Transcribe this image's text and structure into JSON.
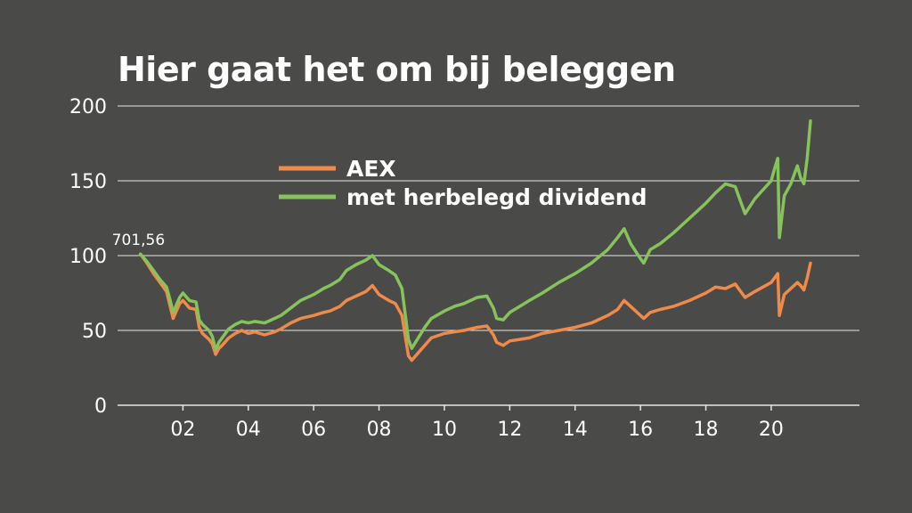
{
  "title": "Hier gaat het om bij beleggen",
  "colors": {
    "background": "#4a4a48",
    "text": "#ffffff",
    "grid": "#e6e6e6",
    "aex": "#f08a4b",
    "dividend": "#86c35a"
  },
  "chart_data": {
    "type": "line",
    "title": "Hier gaat het om bij beleggen",
    "xlabel": "",
    "ylabel": "",
    "xlim": [
      2000.0,
      2022.7
    ],
    "ylim": [
      0,
      200
    ],
    "yticks": [
      0,
      50,
      100,
      150,
      200
    ],
    "xticks": [
      {
        "value": 2002,
        "label": "02"
      },
      {
        "value": 2004,
        "label": "04"
      },
      {
        "value": 2006,
        "label": "06"
      },
      {
        "value": 2008,
        "label": "08"
      },
      {
        "value": 2010,
        "label": "10"
      },
      {
        "value": 2012,
        "label": "12"
      },
      {
        "value": 2014,
        "label": "14"
      },
      {
        "value": 2016,
        "label": "16"
      },
      {
        "value": 2018,
        "label": "18"
      },
      {
        "value": 2020,
        "label": "20"
      }
    ],
    "grid": "horizontal",
    "legend_position": "top-center",
    "annotations": [
      {
        "text": "701,56",
        "x": 2000.7,
        "y": 100
      }
    ],
    "series": [
      {
        "name": "AEX",
        "x": [
          2000.7,
          2000.9,
          2001.1,
          2001.3,
          2001.5,
          2001.6,
          2001.7,
          2001.9,
          2002.0,
          2002.2,
          2002.4,
          2002.5,
          2002.6,
          2002.8,
          2002.9,
          2003.0,
          2003.1,
          2003.2,
          2003.4,
          2003.6,
          2003.8,
          2004.0,
          2004.2,
          2004.5,
          2004.8,
          2005.0,
          2005.3,
          2005.6,
          2006.0,
          2006.3,
          2006.5,
          2006.8,
          2007.0,
          2007.3,
          2007.6,
          2007.8,
          2008.0,
          2008.3,
          2008.5,
          2008.7,
          2008.9,
          2009.0,
          2009.2,
          2009.4,
          2009.6,
          2010.0,
          2010.3,
          2010.6,
          2011.0,
          2011.3,
          2011.5,
          2011.6,
          2011.8,
          2012.0,
          2012.3,
          2012.6,
          2013.0,
          2013.5,
          2014.0,
          2014.5,
          2015.0,
          2015.3,
          2015.5,
          2015.7,
          2016.0,
          2016.1,
          2016.3,
          2016.6,
          2017.0,
          2017.5,
          2018.0,
          2018.3,
          2018.6,
          2018.9,
          2019.0,
          2019.2,
          2019.5,
          2020.0,
          2020.1,
          2020.2,
          2020.25,
          2020.4,
          2020.6,
          2020.8,
          2020.9,
          2021.0,
          2021.1,
          2021.2
        ],
        "values": [
          101,
          95,
          88,
          82,
          76,
          67,
          58,
          68,
          70,
          65,
          64,
          52,
          48,
          44,
          41,
          34,
          38,
          40,
          45,
          48,
          50,
          48,
          49,
          47,
          49,
          51,
          55,
          58,
          60,
          62,
          63,
          66,
          70,
          73,
          76,
          80,
          74,
          70,
          68,
          60,
          33,
          30,
          35,
          40,
          45,
          48,
          49,
          50,
          52,
          53,
          47,
          42,
          40,
          43,
          44,
          45,
          48,
          50,
          52,
          55,
          60,
          64,
          70,
          66,
          60,
          58,
          62,
          64,
          66,
          70,
          75,
          79,
          78,
          81,
          78,
          72,
          76,
          82,
          85,
          88,
          60,
          74,
          78,
          82,
          80,
          77,
          85,
          95
        ]
      },
      {
        "name": "met herbelegd dividend",
        "x": [
          2000.7,
          2000.9,
          2001.1,
          2001.3,
          2001.5,
          2001.6,
          2001.7,
          2001.9,
          2002.0,
          2002.2,
          2002.4,
          2002.5,
          2002.6,
          2002.8,
          2002.9,
          2003.0,
          2003.1,
          2003.2,
          2003.4,
          2003.6,
          2003.8,
          2004.0,
          2004.2,
          2004.5,
          2004.8,
          2005.0,
          2005.3,
          2005.6,
          2006.0,
          2006.3,
          2006.5,
          2006.8,
          2007.0,
          2007.3,
          2007.6,
          2007.8,
          2008.0,
          2008.3,
          2008.5,
          2008.7,
          2008.9,
          2009.0,
          2009.2,
          2009.4,
          2009.6,
          2010.0,
          2010.3,
          2010.6,
          2011.0,
          2011.3,
          2011.5,
          2011.6,
          2011.8,
          2012.0,
          2012.3,
          2012.6,
          2013.0,
          2013.5,
          2014.0,
          2014.5,
          2015.0,
          2015.3,
          2015.5,
          2015.7,
          2016.0,
          2016.1,
          2016.3,
          2016.6,
          2017.0,
          2017.5,
          2018.0,
          2018.3,
          2018.6,
          2018.9,
          2019.0,
          2019.2,
          2019.5,
          2020.0,
          2020.1,
          2020.2,
          2020.25,
          2020.4,
          2020.6,
          2020.8,
          2020.9,
          2021.0,
          2021.1,
          2021.2
        ],
        "values": [
          101,
          96,
          90,
          84,
          79,
          71,
          62,
          72,
          75,
          70,
          69,
          57,
          54,
          50,
          46,
          37,
          42,
          45,
          51,
          54,
          56,
          55,
          56,
          55,
          58,
          60,
          65,
          70,
          74,
          78,
          80,
          84,
          90,
          94,
          97,
          100,
          94,
          90,
          87,
          78,
          44,
          38,
          45,
          52,
          58,
          63,
          66,
          68,
          72,
          73,
          65,
          58,
          57,
          62,
          66,
          70,
          75,
          82,
          88,
          95,
          104,
          112,
          118,
          108,
          98,
          95,
          104,
          108,
          115,
          125,
          135,
          142,
          148,
          146,
          140,
          128,
          138,
          150,
          158,
          165,
          112,
          140,
          148,
          160,
          152,
          148,
          165,
          190
        ]
      }
    ]
  }
}
